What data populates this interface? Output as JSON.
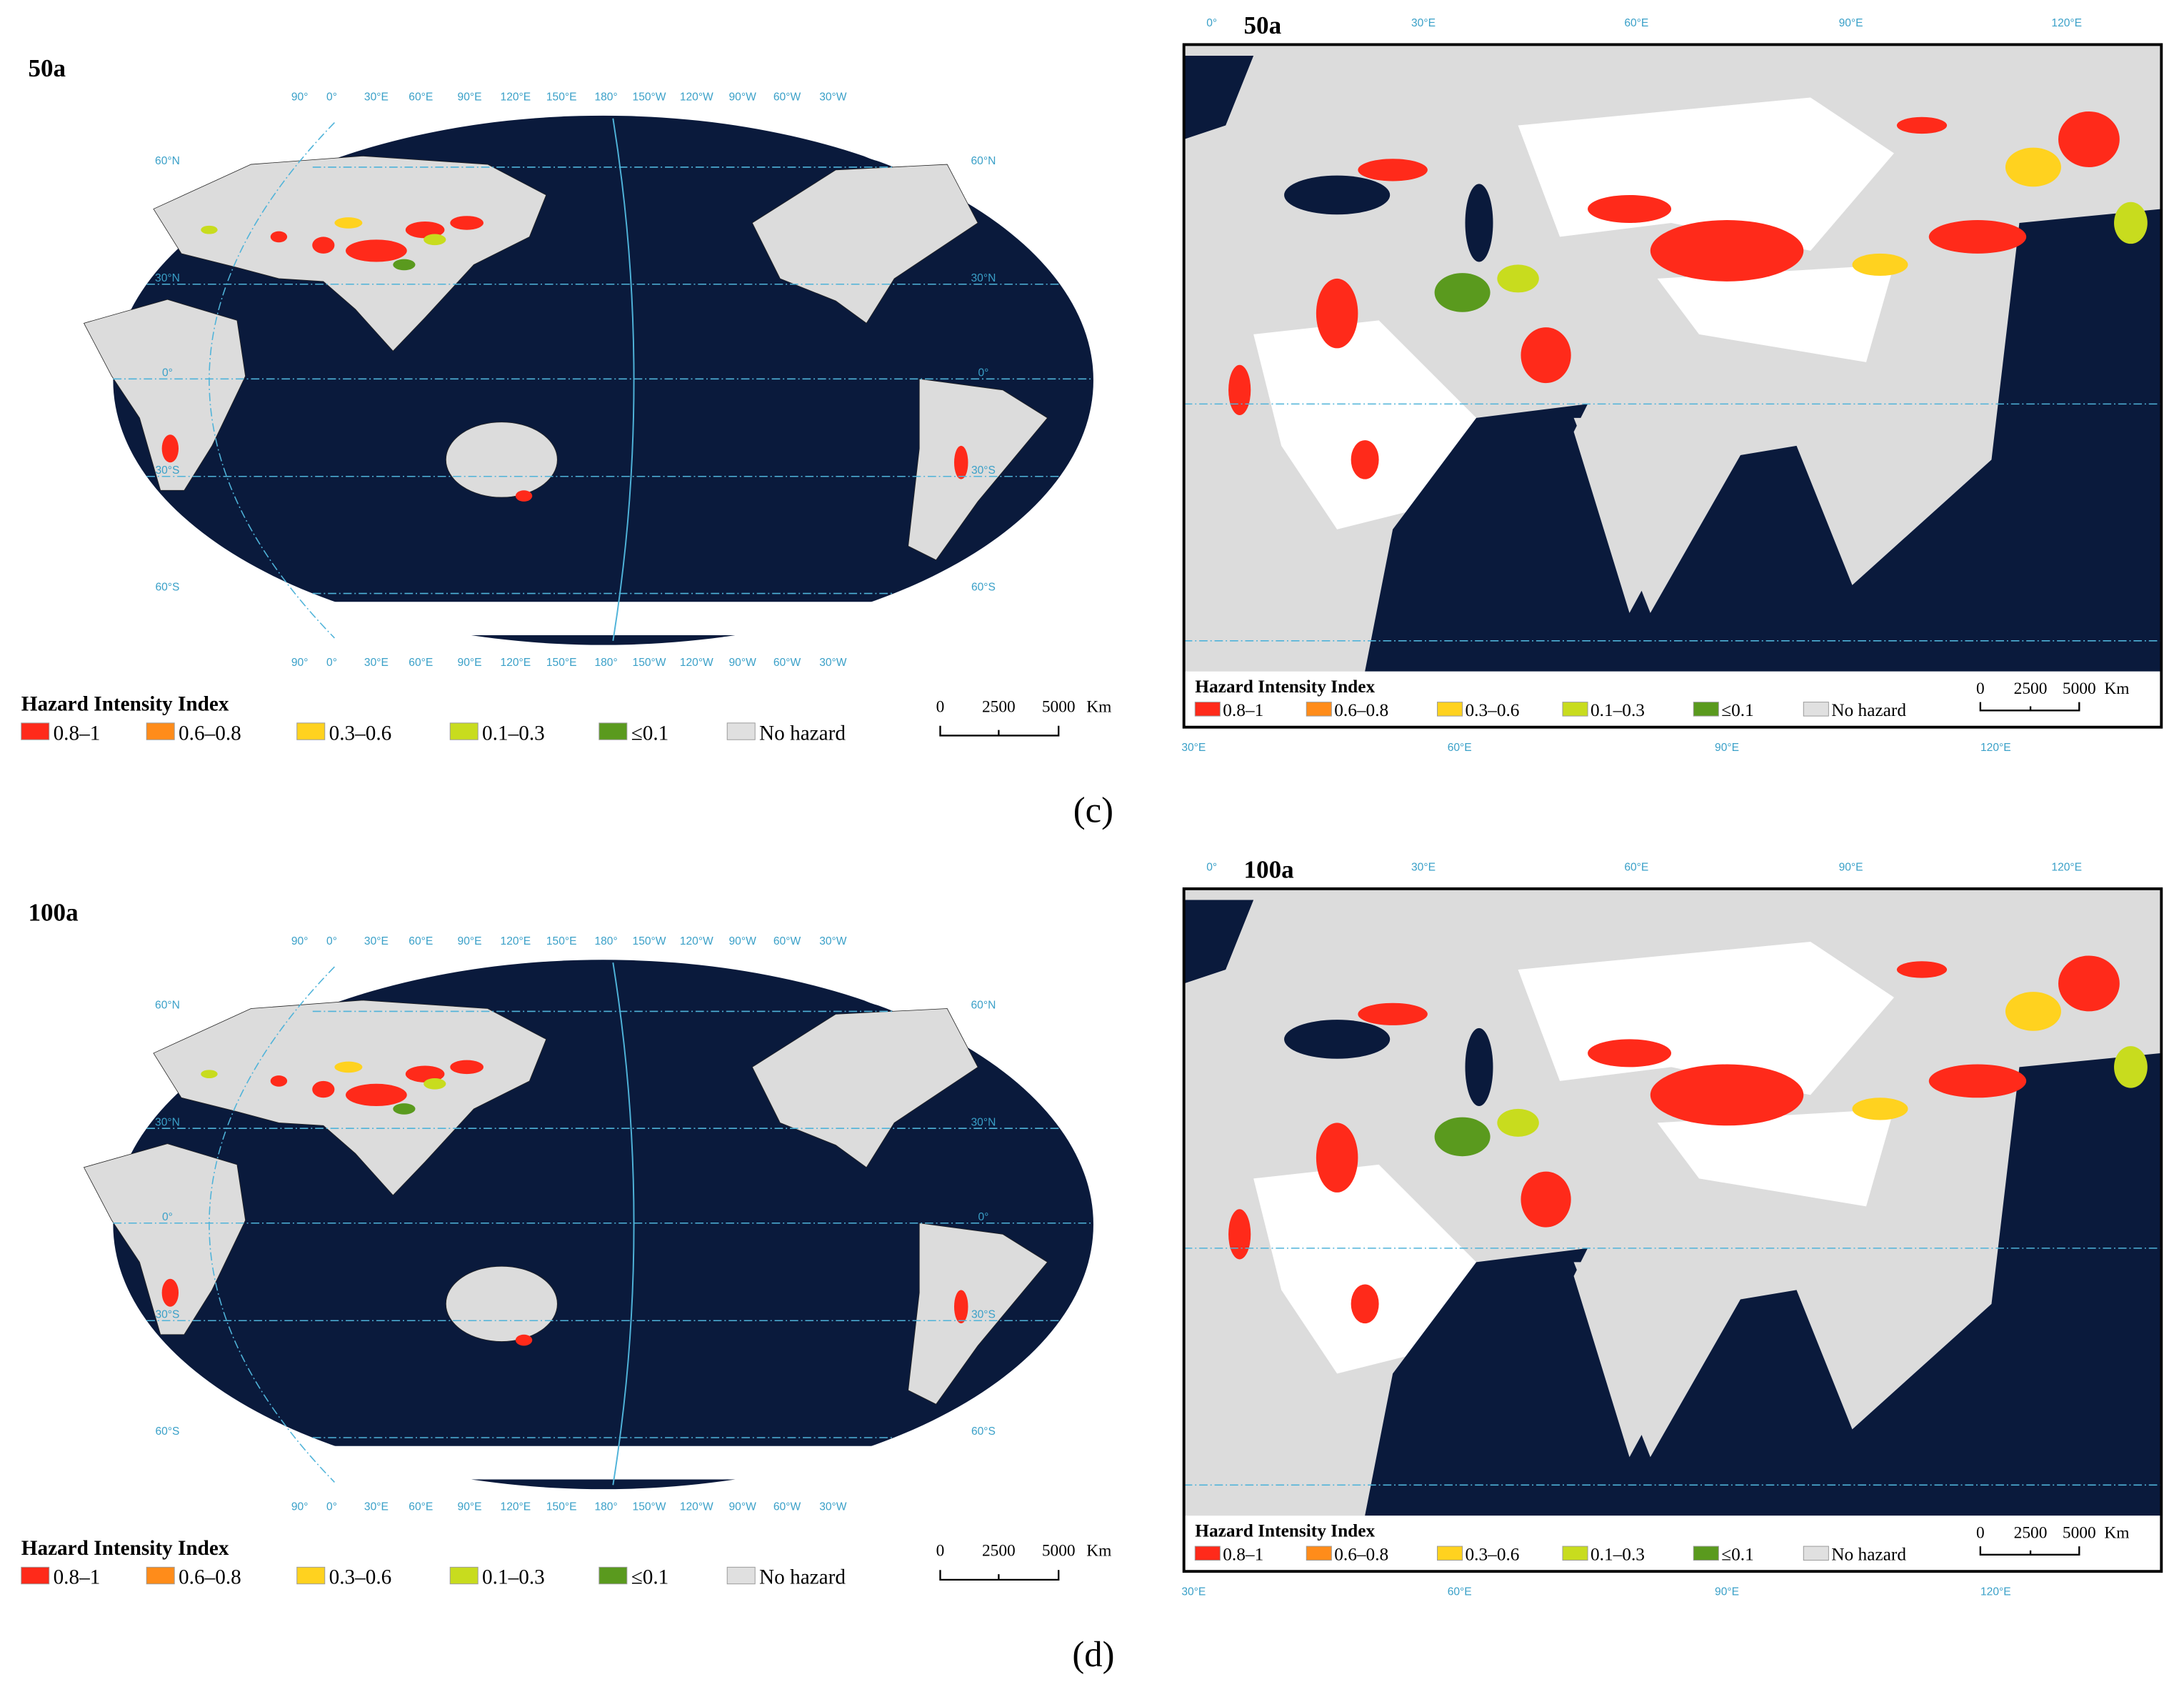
{
  "legend": {
    "title": "Hazard Intensity Index",
    "items": [
      {
        "label": "0.8–1",
        "color": "#ff2a1a"
      },
      {
        "label": "0.6–0.8",
        "color": "#ff8c1a"
      },
      {
        "label": "0.3–0.6",
        "color": "#ffd21f"
      },
      {
        "label": "0.1–0.3",
        "color": "#c8dc1e"
      },
      {
        "label": "≤0.1",
        "color": "#5a9a1e"
      },
      {
        "label": "No hazard",
        "color": "#e0e0e0"
      }
    ]
  },
  "scale_bar": {
    "ticks": [
      "0",
      "2500",
      "5000"
    ],
    "unit": "Km"
  },
  "world_graticule": {
    "lon_labels": [
      "90°",
      "0°",
      "30°E",
      "60°E",
      "90°E",
      "120°E",
      "150°E",
      "180°",
      "150°W",
      "120°W",
      "90°W",
      "60°W",
      "30°W"
    ],
    "lat_labels": [
      "60°N",
      "30°N",
      "0°",
      "30°S",
      "60°S"
    ]
  },
  "regional_graticule": {
    "top_labels": [
      "0°",
      "30°E",
      "60°E",
      "90°E",
      "120°E"
    ],
    "bottom_labels": [
      "30°E",
      "60°E",
      "90°E",
      "120°E"
    ]
  },
  "panels": [
    {
      "label": "(c)",
      "world_title": "50a",
      "regional_title": "50a"
    },
    {
      "label": "(d)",
      "world_title": "100a",
      "regional_title": "100a"
    }
  ]
}
